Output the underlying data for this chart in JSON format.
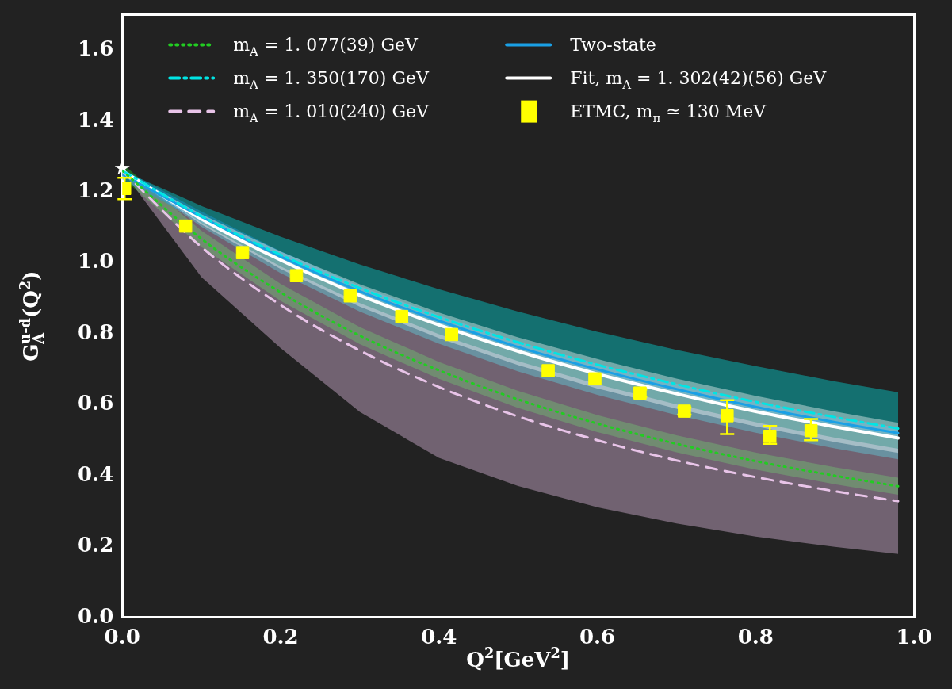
{
  "chart_data": {
    "type": "line",
    "xlabel": "Q$^{2}$[GeV$^{2}$]",
    "ylabel": "G$_{A}$$^{u-d}$(Q$^{2}$)",
    "xlim": [
      0,
      1
    ],
    "ylim": [
      0,
      1.7
    ],
    "xticks": [
      {
        "value": 0,
        "label": "0.0"
      },
      0.2,
      0.4,
      0.6,
      0.8,
      {
        "value": 1,
        "label": "1.0"
      }
    ],
    "yticks": [
      {
        "value": 0,
        "label": "0.0"
      },
      0.2,
      0.4,
      0.6,
      0.8,
      {
        "value": 1,
        "label": "1.0"
      },
      1.2,
      1.4,
      1.6
    ],
    "grid": false,
    "legend": "top",
    "series": [
      {
        "name": "m$_{A}$ = 1. 077(39) GeV",
        "color": "#22cc22",
        "line_style": "dotted",
        "x": [
          0,
          0.1,
          0.2,
          0.3,
          0.4,
          0.5,
          0.6,
          0.7,
          0.8,
          0.9,
          0.98
        ],
        "values": [
          1.26,
          1.068,
          0.917,
          0.795,
          0.697,
          0.615,
          0.547,
          0.49,
          0.441,
          0.4,
          0.37
        ],
        "lower": [
          1.24,
          1.045,
          0.893,
          0.771,
          0.673,
          0.591,
          0.523,
          0.466,
          0.417,
          0.376,
          0.346
        ],
        "upper": [
          1.28,
          1.091,
          0.941,
          0.819,
          0.721,
          0.639,
          0.571,
          0.514,
          0.465,
          0.424,
          0.394
        ]
      },
      {
        "name": "m$_{A}$ = 1. 350(170) GeV",
        "color": "#00e5e5",
        "line_style": "dashdot",
        "x": [
          0,
          0.1,
          0.2,
          0.3,
          0.4,
          0.5,
          0.6,
          0.7,
          0.8,
          0.9,
          0.98
        ],
        "values": [
          1.26,
          1.132,
          1.023,
          0.929,
          0.847,
          0.776,
          0.713,
          0.658,
          0.608,
          0.565,
          0.533
        ],
        "lower": [
          1.26,
          1.102,
          0.971,
          0.863,
          0.772,
          0.694,
          0.628,
          0.571,
          0.521,
          0.477,
          0.446
        ],
        "upper": [
          1.26,
          1.161,
          1.074,
          0.996,
          0.926,
          0.863,
          0.806,
          0.755,
          0.709,
          0.666,
          0.635
        ]
      },
      {
        "name": "m$_{A}$ = 1. 010(240) GeV",
        "color": "#e8c4e8",
        "line_style": "dashed",
        "x": [
          0,
          0.1,
          0.2,
          0.3,
          0.4,
          0.5,
          0.6,
          0.7,
          0.8,
          0.9,
          0.98
        ],
        "values": [
          1.26,
          1.045,
          0.881,
          0.753,
          0.65,
          0.567,
          0.5,
          0.443,
          0.396,
          0.356,
          0.328
        ],
        "lower": [
          1.26,
          0.96,
          0.76,
          0.58,
          0.45,
          0.371,
          0.311,
          0.265,
          0.228,
          0.199,
          0.179
        ],
        "upper": [
          1.26,
          1.113,
          0.99,
          0.887,
          0.799,
          0.723,
          0.658,
          0.601,
          0.551,
          0.507,
          0.476
        ]
      },
      {
        "name": "Two-state",
        "color": "#1aa0e6",
        "line_style": "solid",
        "x": [
          0,
          0.1,
          0.2,
          0.3,
          0.4,
          0.5,
          0.6,
          0.7,
          0.8,
          0.9,
          0.98
        ],
        "values": [
          1.25,
          1.13,
          1.018,
          0.92,
          0.837,
          0.763,
          0.7,
          0.644,
          0.594,
          0.551,
          0.52
        ],
        "lower": [
          1.235,
          1.115,
          1.003,
          0.905,
          0.822,
          0.748,
          0.685,
          0.629,
          0.579,
          0.536,
          0.505
        ],
        "upper": [
          1.265,
          1.145,
          1.033,
          0.935,
          0.852,
          0.778,
          0.715,
          0.659,
          0.609,
          0.566,
          0.535
        ]
      },
      {
        "name": "Fit, m$_{A}$ = 1. 302(42)(56) GeV",
        "color": "#ffffff",
        "line_style": "solid",
        "x": [
          0,
          0.1,
          0.2,
          0.3,
          0.4,
          0.5,
          0.6,
          0.7,
          0.8,
          0.9,
          0.98
        ],
        "values": [
          1.26,
          1.124,
          1.008,
          0.909,
          0.825,
          0.751,
          0.687,
          0.631,
          0.581,
          0.538,
          0.506
        ],
        "lower": [
          1.26,
          1.109,
          0.983,
          0.877,
          0.788,
          0.712,
          0.646,
          0.589,
          0.539,
          0.495,
          0.464
        ],
        "upper": [
          1.26,
          1.137,
          1.032,
          0.94,
          0.86,
          0.79,
          0.729,
          0.674,
          0.625,
          0.581,
          0.549
        ]
      },
      {
        "name": "ETMC, m$_{π}$ ≃ 130 MeV",
        "type": "scatter",
        "color": "#ffff00",
        "marker": "square",
        "x": [
          0.003,
          0.08,
          0.152,
          0.22,
          0.288,
          0.353,
          0.416,
          0.538,
          0.597,
          0.654,
          0.71,
          0.764,
          0.818,
          0.87
        ],
        "values": [
          1.21,
          1.104,
          1.029,
          0.964,
          0.907,
          0.849,
          0.798,
          0.696,
          0.673,
          0.633,
          0.582,
          0.569,
          0.511,
          0.527
        ],
        "errors": [
          [
            1.18,
            1.24
          ],
          null,
          null,
          null,
          null,
          null,
          null,
          null,
          null,
          0.01,
          0.01,
          [
            0.517,
            0.613
          ],
          [
            0.49,
            0.54
          ],
          [
            0.5,
            0.56
          ]
        ]
      },
      {
        "type": "scatter",
        "color": "#ffffff",
        "marker": "star",
        "x": [
          0
        ],
        "values": [
          1.267
        ]
      }
    ]
  }
}
